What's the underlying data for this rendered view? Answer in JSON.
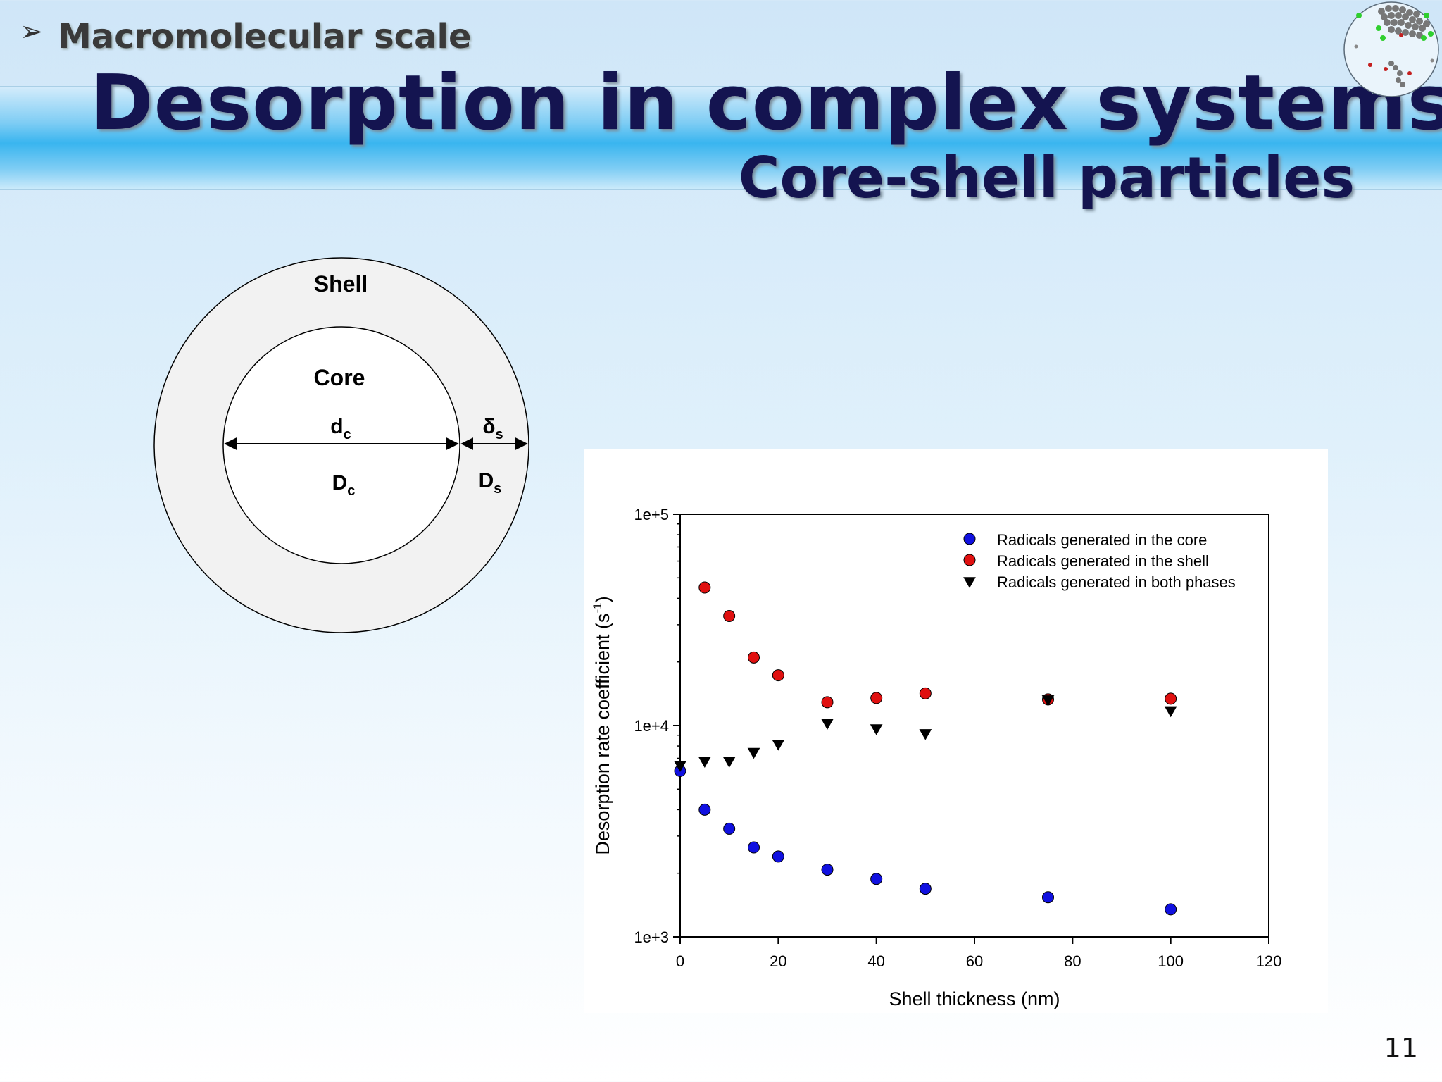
{
  "header": {
    "bullet": "➢",
    "section": "Macromolecular scale",
    "title": "Desorption in complex systems",
    "subtitle": "Core-shell particles"
  },
  "diagram": {
    "shell_label": "Shell",
    "core_label": "Core",
    "dc_main": "d",
    "dc_sub": "c",
    "Dc_main": "D",
    "Dc_sub": "c",
    "delta_main": "δ",
    "delta_sub": "s",
    "Ds_main": "D",
    "Ds_sub": "s"
  },
  "colors": {
    "title": "#141450",
    "core_series": "#1010e0",
    "shell_series": "#e01010",
    "both_series": "#000000"
  },
  "page_number": "11",
  "chart_data": {
    "type": "scatter",
    "xlabel": "Shell thickness (nm)",
    "ylabel_main": "Desorption rate coefficient (s",
    "ylabel_sup": "-1",
    "ylabel_close": ")",
    "xlim": [
      0,
      120
    ],
    "ylim": [
      1000,
      100000
    ],
    "yscale": "log",
    "x_ticks": [
      "0",
      "20",
      "40",
      "60",
      "80",
      "100",
      "120"
    ],
    "y_ticks": [
      "1e+3",
      "1e+4",
      "1e+5"
    ],
    "legend_position": "top-right",
    "grid": false,
    "series": [
      {
        "name": "Radicals generated in the core",
        "marker": "circle",
        "color": "#1010e0",
        "points": [
          [
            0,
            6100
          ],
          [
            5,
            4000
          ],
          [
            10,
            3250
          ],
          [
            15,
            2650
          ],
          [
            20,
            2400
          ],
          [
            30,
            2080
          ],
          [
            40,
            1880
          ],
          [
            50,
            1690
          ],
          [
            75,
            1540
          ],
          [
            100,
            1350
          ]
        ]
      },
      {
        "name": "Radicals generated in the shell",
        "marker": "circle",
        "color": "#e01010",
        "points": [
          [
            5,
            45000
          ],
          [
            10,
            33000
          ],
          [
            15,
            21000
          ],
          [
            20,
            17300
          ],
          [
            30,
            12900
          ],
          [
            40,
            13500
          ],
          [
            50,
            14200
          ],
          [
            75,
            13300
          ],
          [
            100,
            13400
          ]
        ]
      },
      {
        "name": "Radicals generated in both phases",
        "marker": "triangle-down",
        "color": "#000000",
        "points": [
          [
            0,
            6500
          ],
          [
            5,
            6800
          ],
          [
            10,
            6800
          ],
          [
            15,
            7500
          ],
          [
            20,
            8200
          ],
          [
            30,
            10300
          ],
          [
            40,
            9700
          ],
          [
            50,
            9200
          ],
          [
            75,
            13300
          ],
          [
            100,
            11800
          ]
        ]
      }
    ]
  }
}
